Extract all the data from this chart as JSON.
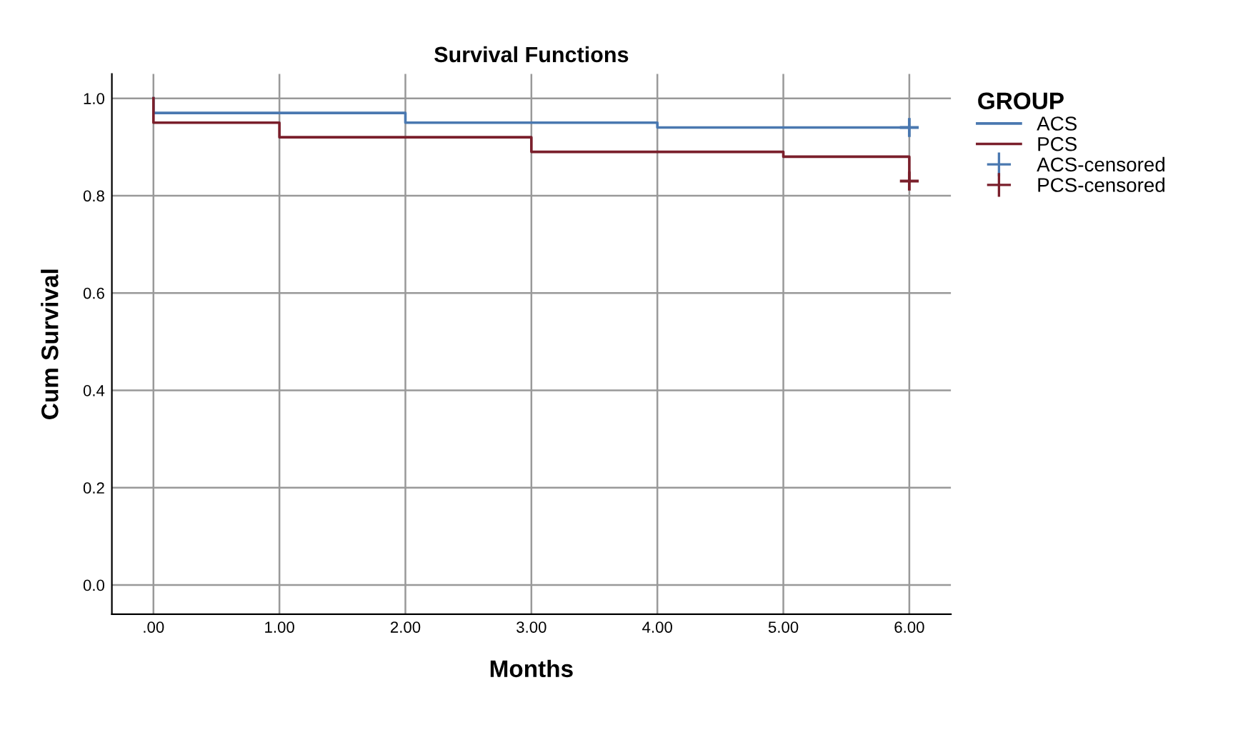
{
  "chart_data": {
    "type": "step",
    "title": "Survival Functions",
    "xlabel": "Months",
    "ylabel": "Cum Survival",
    "legend_title": "GROUP",
    "xlim": [
      -0.33,
      6.33
    ],
    "ylim": [
      -0.06,
      1.05
    ],
    "xticks": [
      {
        "value": 0,
        "label": ".00"
      },
      {
        "value": 1,
        "label": "1.00"
      },
      {
        "value": 2,
        "label": "2.00"
      },
      {
        "value": 3,
        "label": "3.00"
      },
      {
        "value": 4,
        "label": "4.00"
      },
      {
        "value": 5,
        "label": "5.00"
      },
      {
        "value": 6,
        "label": "6.00"
      }
    ],
    "yticks": [
      {
        "value": 0,
        "label": "0.0"
      },
      {
        "value": 0.2,
        "label": "0.2"
      },
      {
        "value": 0.4,
        "label": "0.4"
      },
      {
        "value": 0.6,
        "label": "0.6"
      },
      {
        "value": 0.8,
        "label": "0.8"
      },
      {
        "value": 1,
        "label": "1.0"
      }
    ],
    "grid": true,
    "legend": "top right",
    "line_style": "solid",
    "series": [
      {
        "name": "ACS",
        "color": "#4a78b0",
        "x": [
          0,
          0,
          2,
          4,
          6
        ],
        "values": [
          1.0,
          0.97,
          0.95,
          0.94,
          0.94
        ]
      },
      {
        "name": "PCS",
        "color": "#7a1f2b",
        "x": [
          0,
          0,
          1,
          3,
          5,
          6,
          6
        ],
        "values": [
          1.0,
          0.95,
          0.92,
          0.89,
          0.88,
          0.88,
          0.83
        ]
      },
      {
        "name": "ACS-censored",
        "type": "scatter",
        "marker": "cross",
        "color": "#4a78b0",
        "x": [
          6
        ],
        "values": [
          0.94
        ]
      },
      {
        "name": "PCS-censored",
        "type": "scatter",
        "marker": "cross",
        "color": "#7a1f2b",
        "x": [
          6
        ],
        "values": [
          0.83
        ]
      }
    ]
  }
}
